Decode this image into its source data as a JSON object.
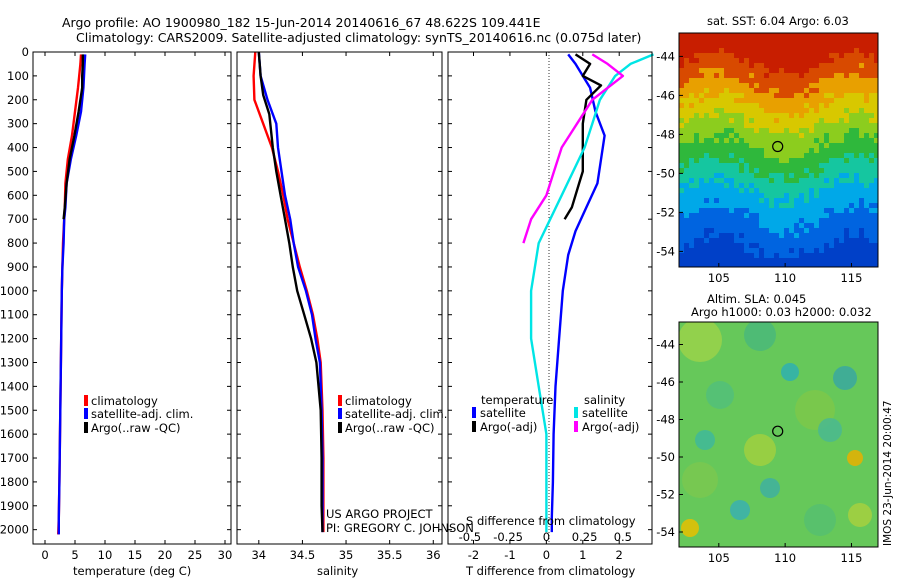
{
  "title": {
    "line1": "Argo profile: AO 1900980_182 15-Jun-2014 20140616_67 48.622S 109.441E",
    "line2": "Climatology: CARS2009. Satellite-adjusted climatology: synTS_20140616.nc (0.075d later)"
  },
  "colors": {
    "climatology": "#ff0000",
    "satellite": "#0000ff",
    "argo": "#000000",
    "sat_salinity": "#00e5e5",
    "argo_salinity": "#ff00ff"
  },
  "credit": {
    "line1": "US ARGO PROJECT",
    "line2": "PI: GREGORY C. JOHNSON"
  },
  "imos_stamp": "IMOS 23-Jun-2014 20:00:47",
  "chart_data": [
    {
      "type": "line",
      "panel": "temperature",
      "xlabel": "temperature (deg C)",
      "ylabel": "",
      "xlim": [
        -2,
        31
      ],
      "ylim": [
        2060,
        0
      ],
      "y_reversed": true,
      "xticks": [
        0,
        5,
        10,
        15,
        20,
        25,
        30
      ],
      "yticks": [
        0,
        100,
        200,
        300,
        400,
        500,
        600,
        700,
        800,
        900,
        1000,
        1100,
        1200,
        1300,
        1400,
        1500,
        1600,
        1700,
        1800,
        1900,
        2000
      ],
      "legend": {
        "position": "lower-middle",
        "entries": [
          "climatology",
          "satellite-adj. clim.",
          "Argo(..raw -QC)"
        ]
      },
      "series": [
        {
          "name": "climatology",
          "color": "#ff0000",
          "x": [
            6.0,
            5.9,
            5.7,
            5.5,
            5.0,
            4.5,
            3.8,
            3.4,
            3.3,
            3.2,
            3.0,
            2.9,
            2.8,
            2.7,
            2.6,
            2.5,
            2.4,
            2.3,
            2.2
          ],
          "y": [
            10,
            50,
            100,
            150,
            250,
            350,
            450,
            550,
            650,
            700,
            800,
            900,
            1000,
            1200,
            1400,
            1600,
            1800,
            1950,
            2020
          ]
        },
        {
          "name": "satellite-adj. clim.",
          "color": "#0000ff",
          "x": [
            6.7,
            6.6,
            6.5,
            6.4,
            6.0,
            5.2,
            4.3,
            3.6,
            3.4,
            3.2,
            3.1,
            2.9,
            2.8,
            2.7,
            2.6,
            2.5,
            2.4,
            2.3,
            2.3
          ],
          "y": [
            10,
            50,
            100,
            150,
            250,
            350,
            450,
            550,
            650,
            700,
            800,
            900,
            1000,
            1200,
            1400,
            1600,
            1800,
            1950,
            2020
          ]
        },
        {
          "name": "Argo(..raw -QC)",
          "color": "#000000",
          "x": [
            6.3,
            6.3,
            6.2,
            6.2,
            5.6,
            4.9,
            4.1,
            3.6,
            3.3,
            3.1
          ],
          "y": [
            10,
            50,
            100,
            150,
            250,
            350,
            450,
            550,
            650,
            700
          ]
        }
      ]
    },
    {
      "type": "line",
      "panel": "salinity",
      "xlabel": "salinity",
      "ylabel": "",
      "xlim": [
        33.75,
        36.1
      ],
      "ylim": [
        2060,
        0
      ],
      "y_reversed": true,
      "xticks": [
        34,
        34.5,
        35,
        35.5,
        36
      ],
      "legend": {
        "position": "lower-middle",
        "entries": [
          "climatology",
          "satellite-adj. clim.",
          "Argo(..raw -QC)"
        ]
      },
      "series": [
        {
          "name": "climatology",
          "color": "#ff0000",
          "x": [
            33.96,
            33.94,
            33.95,
            34.05,
            34.15,
            34.22,
            34.28,
            34.33,
            34.4,
            34.47,
            34.55,
            34.62,
            34.67,
            34.71,
            34.73,
            34.74,
            34.74,
            34.74,
            34.74
          ],
          "y": [
            0,
            100,
            200,
            300,
            400,
            500,
            600,
            700,
            800,
            900,
            1000,
            1100,
            1200,
            1300,
            1500,
            1700,
            1800,
            1900,
            2010
          ]
        },
        {
          "name": "satellite-adj. clim.",
          "color": "#0000ff",
          "x": [
            34.0,
            34.02,
            34.1,
            34.2,
            34.22,
            34.26,
            34.3,
            34.36,
            34.4,
            34.45,
            34.54,
            34.61,
            34.65,
            34.7,
            34.72,
            34.73,
            34.73,
            34.73,
            34.73
          ],
          "y": [
            0,
            100,
            200,
            300,
            400,
            500,
            600,
            700,
            800,
            900,
            1000,
            1100,
            1200,
            1300,
            1500,
            1700,
            1800,
            1900,
            2010
          ]
        },
        {
          "name": "Argo(..raw -QC)",
          "color": "#000000",
          "x": [
            34.0,
            34.02,
            34.05,
            34.12,
            34.16,
            34.2,
            34.25,
            34.3,
            34.35,
            34.39,
            34.44,
            34.52,
            34.6,
            34.66,
            34.71,
            34.72,
            34.72,
            34.73
          ],
          "y": [
            0,
            100,
            180,
            260,
            400,
            500,
            600,
            700,
            800,
            900,
            1000,
            1100,
            1200,
            1300,
            1500,
            1700,
            1900,
            2010
          ]
        }
      ]
    },
    {
      "type": "line",
      "panel": "difference",
      "xlabel": "T difference from climatology",
      "x2label": "S difference from climatology",
      "ylabel": "",
      "xlim": [
        -2.7,
        2.9
      ],
      "ylim": [
        2060,
        0
      ],
      "y_reversed": true,
      "xticks": [
        -2,
        -1,
        0,
        1,
        2
      ],
      "x2ticks": [
        -0.5,
        -0.25,
        0,
        0.25,
        0.5
      ],
      "legend": {
        "position": "lower-middle",
        "headers": [
          "temperature",
          "salinity"
        ],
        "entries": [
          "satellite",
          "Argo(-adj)",
          "satellite",
          "Argo(-adj)"
        ]
      },
      "series": [
        {
          "name": "satellite",
          "group": "temperature",
          "color": "#0000ff",
          "x": [
            0.6,
            0.8,
            1.0,
            1.2,
            1.35,
            1.6,
            1.5,
            1.4,
            1.1,
            0.8,
            0.6,
            0.45,
            0.35,
            0.25,
            0.2,
            0.18,
            0.15,
            0.15
          ],
          "y": [
            10,
            50,
            100,
            150,
            250,
            350,
            450,
            550,
            650,
            750,
            850,
            1000,
            1200,
            1400,
            1600,
            1800,
            1950,
            2010
          ]
        },
        {
          "name": "Argo(-adj)",
          "group": "temperature",
          "color": "#000000",
          "x": [
            0.8,
            1.2,
            1.0,
            1.5,
            1.1,
            1.0,
            1.0,
            1.0,
            0.9,
            0.7,
            0.5
          ],
          "y": [
            10,
            50,
            100,
            140,
            200,
            300,
            400,
            500,
            550,
            650,
            700
          ]
        },
        {
          "name": "satellite",
          "group": "salinity",
          "color": "#00e5e5",
          "x": [
            0.7,
            0.55,
            0.45,
            0.35,
            0.3,
            0.25,
            0.1,
            -0.05,
            -0.1,
            -0.1,
            -0.05,
            0.0,
            0.0,
            0.0
          ],
          "y": [
            10,
            50,
            100,
            200,
            300,
            400,
            600,
            800,
            1000,
            1200,
            1400,
            1600,
            1800,
            2010
          ]
        },
        {
          "name": "Argo(-adj)",
          "group": "salinity",
          "color": "#ff00ff",
          "x": [
            0.3,
            0.4,
            0.5,
            0.3,
            0.2,
            0.1,
            0.05,
            0.0,
            -0.1,
            -0.15
          ],
          "y": [
            10,
            50,
            100,
            200,
            300,
            400,
            500,
            600,
            700,
            800
          ]
        }
      ]
    }
  ],
  "maps": [
    {
      "title": "sat. SST: 6.04 Argo: 6.03",
      "xticks": [
        105,
        110,
        115
      ],
      "yticks": [
        -44,
        -46,
        -48,
        -50,
        -52,
        -54
      ],
      "xlim": [
        102,
        117
      ],
      "ylim": [
        -54.8,
        -42.8
      ],
      "marker": {
        "lon": 109.441,
        "lat": -48.622
      }
    },
    {
      "title_line1": "Altim. SLA: 0.045",
      "title_line2": "Argo h1000: 0.03 h2000: 0.032",
      "xticks": [
        105,
        110,
        115
      ],
      "yticks": [
        -44,
        -46,
        -48,
        -50,
        -52,
        -54
      ],
      "xlim": [
        102,
        117
      ],
      "ylim": [
        -54.8,
        -42.8
      ],
      "marker": {
        "lon": 109.441,
        "lat": -48.622
      }
    }
  ]
}
